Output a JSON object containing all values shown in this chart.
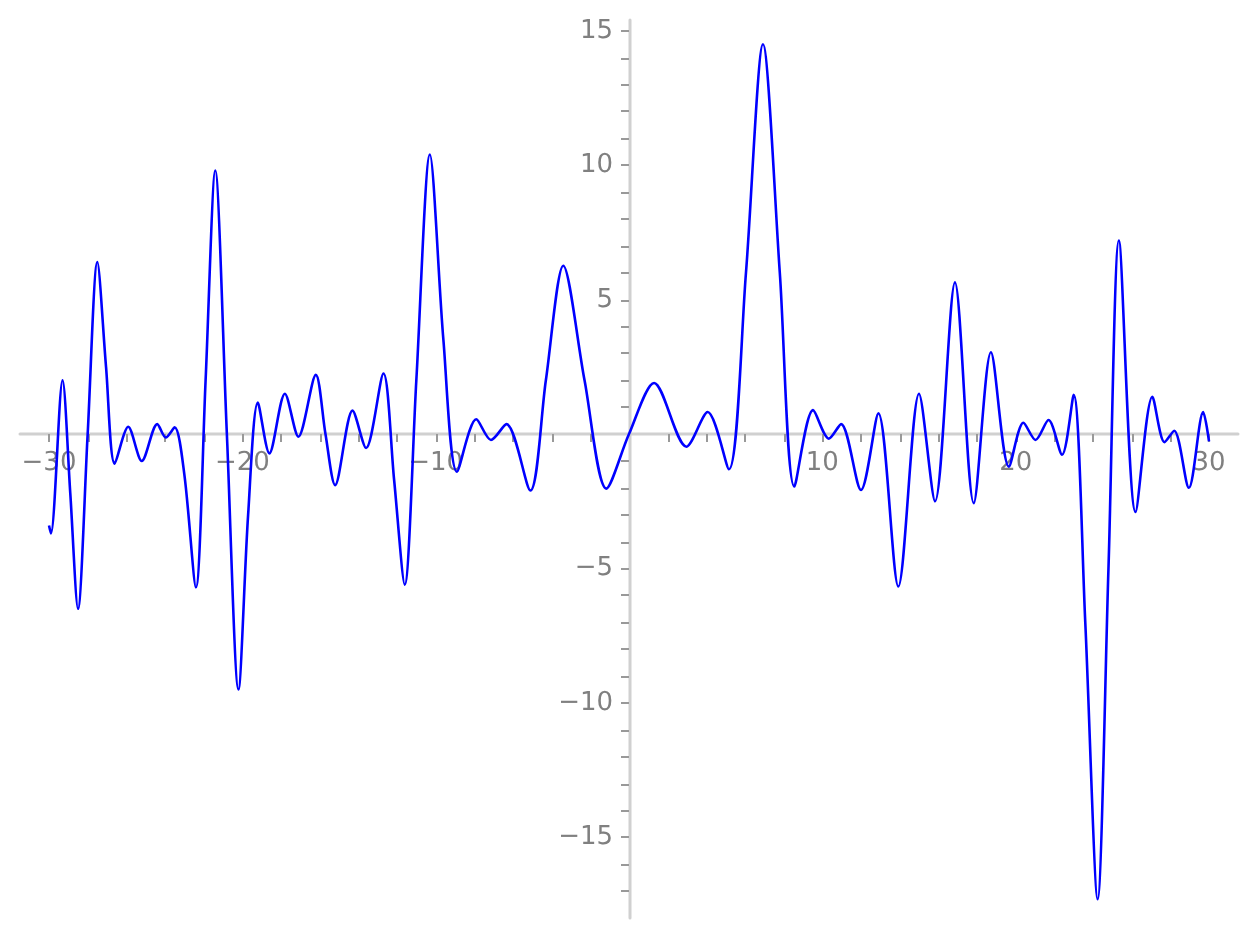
{
  "chart_data": {
    "type": "line",
    "line_style": "solid",
    "marker": "none",
    "grid": false,
    "xlim": [
      -31.5,
      31.5
    ],
    "ylim": [
      -18,
      15.4
    ],
    "xticks": [
      {
        "value": -30,
        "label": "−30"
      },
      {
        "value": -28,
        "label": null
      },
      {
        "value": -26,
        "label": null
      },
      {
        "value": -24,
        "label": null
      },
      {
        "value": -22,
        "label": null
      },
      {
        "value": -20,
        "label": "−20"
      },
      {
        "value": -18,
        "label": null
      },
      {
        "value": -16,
        "label": null
      },
      {
        "value": -14,
        "label": null
      },
      {
        "value": -12,
        "label": null
      },
      {
        "value": -10,
        "label": "−10"
      },
      {
        "value": -8,
        "label": null
      },
      {
        "value": -6,
        "label": null
      },
      {
        "value": -4,
        "label": null
      },
      {
        "value": -2,
        "label": null
      },
      {
        "value": 2,
        "label": null
      },
      {
        "value": 4,
        "label": null
      },
      {
        "value": 6,
        "label": null
      },
      {
        "value": 8,
        "label": null
      },
      {
        "value": 10,
        "label": "10"
      },
      {
        "value": 12,
        "label": null
      },
      {
        "value": 14,
        "label": null
      },
      {
        "value": 16,
        "label": null
      },
      {
        "value": 18,
        "label": null
      },
      {
        "value": 20,
        "label": "20"
      },
      {
        "value": 22,
        "label": null
      },
      {
        "value": 24,
        "label": null
      },
      {
        "value": 26,
        "label": null
      },
      {
        "value": 28,
        "label": null
      },
      {
        "value": 30,
        "label": "30"
      }
    ],
    "yticks": [
      {
        "value": -17,
        "label": null
      },
      {
        "value": -16,
        "label": null
      },
      {
        "value": -15,
        "label": "−15"
      },
      {
        "value": -14,
        "label": null
      },
      {
        "value": -13,
        "label": null
      },
      {
        "value": -12,
        "label": null
      },
      {
        "value": -11,
        "label": null
      },
      {
        "value": -10,
        "label": "−10"
      },
      {
        "value": -9,
        "label": null
      },
      {
        "value": -8,
        "label": null
      },
      {
        "value": -7,
        "label": null
      },
      {
        "value": -6,
        "label": null
      },
      {
        "value": -5,
        "label": "−5"
      },
      {
        "value": -4,
        "label": null
      },
      {
        "value": -3,
        "label": null
      },
      {
        "value": -2,
        "label": null
      },
      {
        "value": -1,
        "label": null
      },
      {
        "value": 1,
        "label": null
      },
      {
        "value": 2,
        "label": null
      },
      {
        "value": 3,
        "label": null
      },
      {
        "value": 4,
        "label": null
      },
      {
        "value": 5,
        "label": "5"
      },
      {
        "value": 6,
        "label": null
      },
      {
        "value": 7,
        "label": null
      },
      {
        "value": 8,
        "label": null
      },
      {
        "value": 9,
        "label": null
      },
      {
        "value": 10,
        "label": "10"
      },
      {
        "value": 11,
        "label": null
      },
      {
        "value": 12,
        "label": null
      },
      {
        "value": 13,
        "label": null
      },
      {
        "value": 14,
        "label": null
      },
      {
        "value": 15,
        "label": "15"
      }
    ],
    "series": [
      {
        "color": "#0000ff",
        "x": [
          -30,
          -29.9,
          -29.3,
          -28.9,
          -28.5,
          -28,
          -27.5,
          -27.05,
          -26.6,
          -25.9,
          -25.2,
          -24.4,
          -23.96,
          -23.5,
          -23,
          -22.4,
          -21.9,
          -21.4,
          -20.8,
          -20.2,
          -19.7,
          -19.2,
          -18.6,
          -17.8,
          -17.1,
          -16.2,
          -15.7,
          -15.2,
          -14.3,
          -13.6,
          -12.7,
          -12.15,
          -11.6,
          -11,
          -10.3,
          -9.6,
          -8.9,
          -7.9,
          -7.14,
          -6.34,
          -5.1,
          -4.3,
          -3.4,
          -2.3,
          -1.17,
          0,
          1.3,
          2.97,
          4.07,
          5.17,
          6.05,
          6.93,
          7.8,
          8.55,
          9.52,
          10.34,
          10.97,
          12,
          12.9,
          13.93,
          15,
          15.83,
          16.86,
          17.83,
          18.72,
          19.65,
          20.4,
          21.03,
          21.7,
          22.4,
          23,
          23.6,
          24.24,
          24.8,
          25.34,
          26.2,
          27.07,
          27.7,
          28.2,
          28.96,
          29.7,
          30
        ],
        "values": [
          -3.4,
          -3.7,
          2,
          -2.2,
          -6.5,
          0,
          6.4,
          2.5,
          -1.1,
          0.27,
          -1,
          0.37,
          -0.13,
          0.25,
          -1.5,
          -5.7,
          2,
          9.8,
          0,
          -9.5,
          -3,
          1.17,
          -0.72,
          1.5,
          -0.1,
          2.2,
          0,
          -1.9,
          0.87,
          -0.52,
          2.25,
          -1.7,
          -5.6,
          2,
          10.4,
          3.5,
          -1.4,
          0.55,
          -0.22,
          0.37,
          -2.1,
          2,
          6.26,
          2,
          -2.03,
          0,
          1.9,
          -0.47,
          0.82,
          -1.31,
          6,
          14.5,
          6,
          -1.95,
          0.89,
          -0.17,
          0.37,
          -2.08,
          0.77,
          -5.67,
          1.5,
          -2.5,
          5.64,
          -2.57,
          3.04,
          -1.21,
          0.42,
          -0.22,
          0.52,
          -0.77,
          1.46,
          -7,
          -17.3,
          -5,
          7.2,
          -2.9,
          1.39,
          -0.3,
          0.12,
          -2,
          0.82,
          -0.27
        ]
      }
    ]
  }
}
